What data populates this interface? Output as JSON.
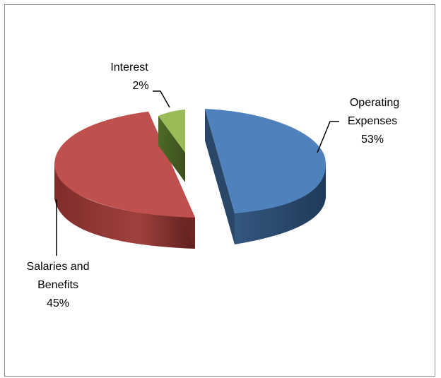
{
  "chart_data": {
    "type": "pie",
    "style": "3d-exploded",
    "title": "",
    "slices": [
      {
        "label_lines": [
          "Operating",
          "Expenses"
        ],
        "percent_label": "53%",
        "value": 53,
        "color": "#4f81bd"
      },
      {
        "label_lines": [
          "Salaries and",
          "Benefits"
        ],
        "percent_label": "45%",
        "value": 45,
        "color": "#c0504d"
      },
      {
        "label_lines": [
          "Interest"
        ],
        "percent_label": "2%",
        "value": 2,
        "color": "#9bbb59"
      }
    ],
    "legend": "none"
  }
}
